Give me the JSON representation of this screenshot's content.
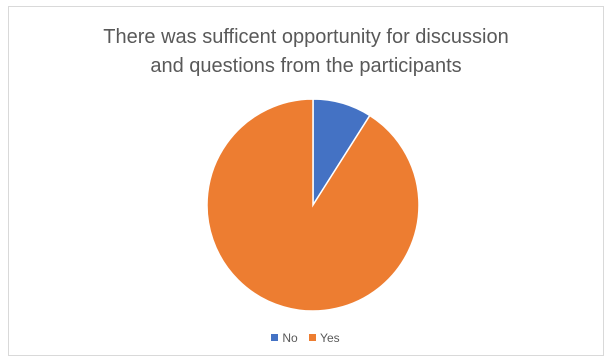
{
  "chart_data": {
    "type": "pie",
    "title_lines": [
      "There was sufficent opportunity for discussion",
      "and questions from the participants"
    ],
    "categories": [
      "No",
      "Yes"
    ],
    "values": [
      9,
      91
    ],
    "colors": [
      "#4472c4",
      "#ed7d31"
    ],
    "legend_position": "bottom"
  }
}
